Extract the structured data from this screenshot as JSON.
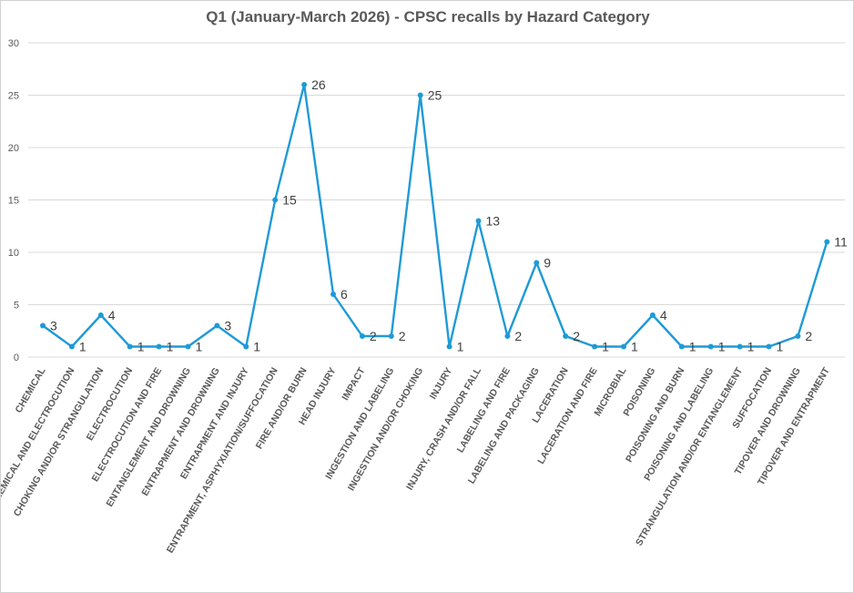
{
  "chart_data": {
    "type": "line",
    "title": "Q1 (January-March 2026) - CPSC recalls by Hazard Category",
    "xlabel": "",
    "ylabel": "",
    "ylim": [
      0,
      30
    ],
    "yticks": [
      0,
      5,
      10,
      15,
      20,
      25,
      30
    ],
    "grid": true,
    "legend": "none",
    "data_labels": true,
    "line_color": "#1f9ad6",
    "categories": [
      "CHEMICAL",
      "CHEMICAL AND ELECTROCUTION",
      "CHOKING AND/OR STRANGULATION",
      "ELECTROCUTION",
      "ELECTROCUTION AND FIRE",
      "ENTANGLEMENT AND DROWNING",
      "ENTRAPMENT AND DROWNING",
      "ENTRAPMENT AND INJURY",
      "ENTRAPMENT, ASPHYXIATION/SUFFOCATION",
      "FIRE AND/OR BURN",
      "HEAD INJURY",
      "IMPACT",
      "INGESTION AND LABELING",
      "INGESTION AND/OR CHOKING",
      "INJURY",
      "INJURY, CRASH AND/OR FALL",
      "LABELING AND FIRE",
      "LABELING AND PACKAGING",
      "LACERATION",
      "LACERATION AND FIRE",
      "MICROBIAL",
      "POISONING",
      "POISONING AND BURN",
      "POISONING AND LABELING",
      "STRANGULATION AND/OR ENTANGLEMENT",
      "SUFFOCATION",
      "TIPOVER AND DROWNING",
      "TIPOVER AND ENTRAPMENT"
    ],
    "series": [
      {
        "values": [
          3,
          1,
          4,
          1,
          1,
          1,
          3,
          1,
          15,
          26,
          6,
          2,
          2,
          25,
          1,
          13,
          2,
          9,
          2,
          1,
          1,
          4,
          1,
          1,
          1,
          1,
          2,
          11
        ]
      }
    ]
  }
}
